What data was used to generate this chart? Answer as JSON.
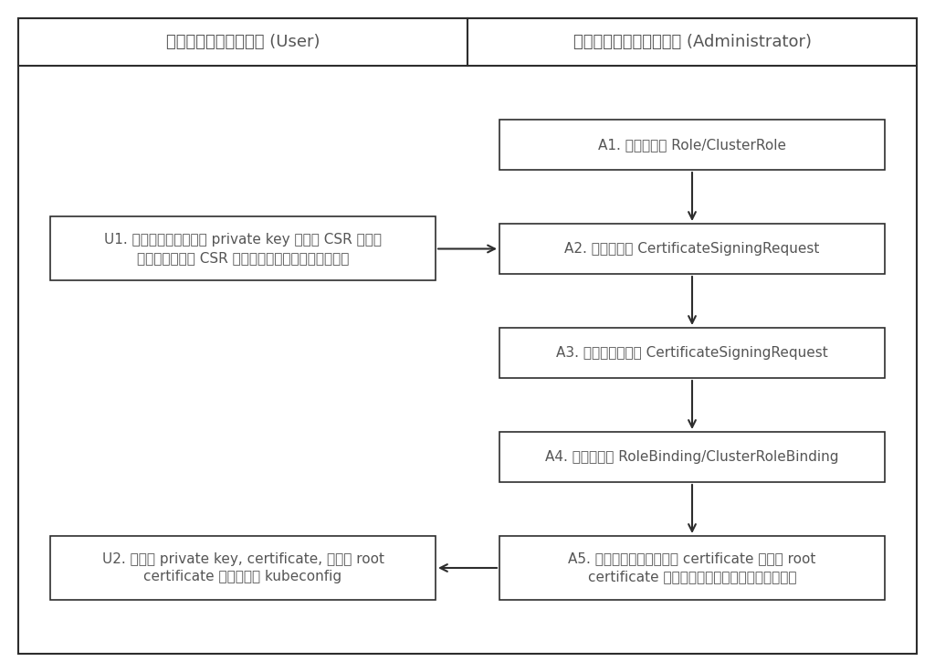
{
  "bg_color": "#ffffff",
  "border_color": "#2d2d2d",
  "text_color": "#555555",
  "fig_width": 10.24,
  "fig_height": 7.36,
  "col1_header": "ผู้ใช้ใหม่ (User)",
  "col2_header": "ผู้ดูแลระบบ (Administrator)",
  "A1_label": "A1. สร้าง Role/ClusterRole",
  "A2_label": "A2. สร้าง CertificateSigningRequest",
  "A3_label": "A3. อนุมัติ CertificateSigningRequest",
  "A4_label": "A4. สร้าง RoleBinding/ClusterRoleBinding",
  "A5_line1": "A5. เตรียมไฟล์ certificate และ root",
  "A5_line2": "certificate ส่งให้ผู้ใช้ใหม่",
  "U1_line1": "U1. สร้างไฟล์ private key และ CSR และ",
  "U1_line2": "ส่งไฟล์ CSR ให้ผู้ดูแลระบบ",
  "U2_line1": "U2. ใช้ private key, certificate, และ root",
  "U2_line2": "certificate สร้าง kubeconfig",
  "font_size_header": 13,
  "font_size_box": 11
}
